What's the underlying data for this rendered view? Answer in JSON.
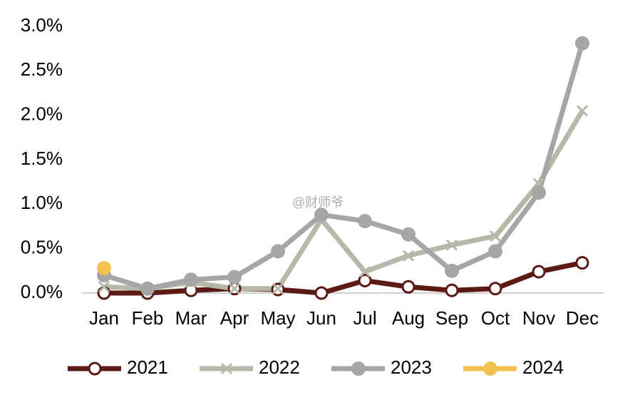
{
  "chart_data": {
    "type": "line",
    "watermark": "@财师爷",
    "categories": [
      "Jan",
      "Feb",
      "Mar",
      "Apr",
      "May",
      "Jun",
      "Jul",
      "Aug",
      "Sep",
      "Oct",
      "Nov",
      "Dec"
    ],
    "series": [
      {
        "name": "2021",
        "color": "#5c1a14",
        "marker": "open-circle",
        "values": [
          0.0,
          0.0,
          0.03,
          0.05,
          0.04,
          0.0,
          0.14,
          0.07,
          0.03,
          0.05,
          0.24,
          0.34
        ]
      },
      {
        "name": "2022",
        "color": "#b5b9a8",
        "marker": "x",
        "values": [
          0.07,
          0.05,
          0.12,
          0.05,
          0.05,
          0.83,
          0.24,
          0.42,
          0.54,
          0.64,
          1.23,
          2.05
        ]
      },
      {
        "name": "2023",
        "color": "#a6a6a6",
        "marker": "circle",
        "values": [
          0.2,
          0.05,
          0.15,
          0.18,
          0.47,
          0.88,
          0.81,
          0.66,
          0.25,
          0.47,
          1.13,
          2.81
        ]
      },
      {
        "name": "2024",
        "color": "#f2c14e",
        "marker": "circle",
        "values": [
          0.28,
          null,
          null,
          null,
          null,
          null,
          null,
          null,
          null,
          null,
          null,
          null
        ]
      }
    ],
    "ylim": [
      0,
      3
    ],
    "yticks": [
      {
        "value": 0,
        "label": "0.0%"
      },
      {
        "value": 0.5,
        "label": "0.5%"
      },
      {
        "value": 1,
        "label": "1.0%"
      },
      {
        "value": 1.5,
        "label": "1.5%"
      },
      {
        "value": 2,
        "label": "2.0%"
      },
      {
        "value": 2.5,
        "label": "2.5%"
      },
      {
        "value": 3,
        "label": "3.0%"
      }
    ],
    "grid": false,
    "legend": "bottom"
  }
}
